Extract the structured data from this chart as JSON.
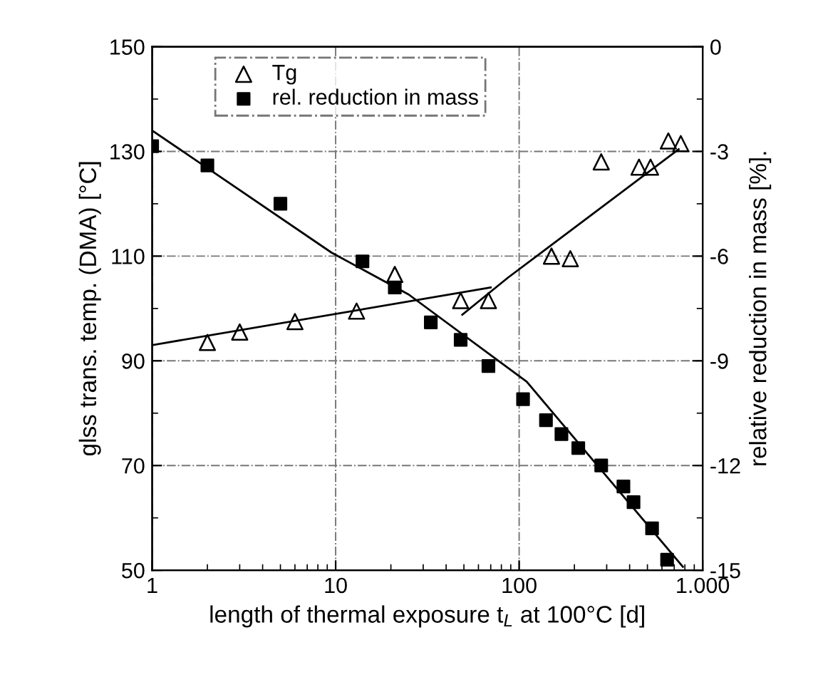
{
  "chart_data": {
    "type": "scatter",
    "xlabel": "length of thermal exposure t$_{L}$ at 100°C [d]",
    "ylabel": "glss trans. temp. (DMA) [°C]",
    "y2label": "relative reduction in mass [%].",
    "log": "x",
    "xlim": [
      1,
      1000
    ],
    "xticks": [
      1,
      10,
      100,
      {
        "value": 1000,
        "label": "1.000"
      }
    ],
    "ylim": [
      50,
      150
    ],
    "yticks": [
      50,
      70,
      90,
      110,
      130,
      150
    ],
    "y2lim": [
      -15,
      0
    ],
    "y2ticks": [
      -15,
      -12,
      -9,
      -6,
      -3,
      0
    ],
    "grid": true,
    "legend": "top",
    "series": [
      {
        "name": "Tg",
        "color": "#000000",
        "marker": "triangle",
        "x": [
          2,
          3,
          6,
          13,
          21,
          48,
          68,
          150,
          190,
          280,
          450,
          520,
          650,
          760
        ],
        "values": [
          93.5,
          95.5,
          97.5,
          99.5,
          106.5,
          101.5,
          101.5,
          110,
          109.5,
          128,
          127,
          127,
          132,
          131.5
        ]
      },
      {
        "name": "rel. reduction in mass",
        "color": "#000000",
        "marker": "square",
        "axis": "y2",
        "x": [
          1,
          2,
          5,
          14,
          21,
          33,
          48,
          68,
          105,
          140,
          170,
          210,
          280,
          370,
          420,
          530,
          640
        ],
        "values": [
          -2.85,
          -3.4,
          -4.5,
          -6.15,
          -6.9,
          -7.9,
          -8.4,
          -9.15,
          -10.1,
          -10.7,
          -11.1,
          -11.5,
          -12,
          -12.6,
          -13.05,
          -13.8,
          -14.7
        ]
      },
      {
        "type": "line",
        "color": "#000000",
        "x": [
          1,
          70
        ],
        "values": [
          93,
          104
        ]
      },
      {
        "type": "line",
        "color": "#000000",
        "x": [
          49,
          87,
          740
        ],
        "values": [
          98.8,
          105.9,
          130.4
        ]
      },
      {
        "type": "line",
        "color": "#000000",
        "axis": "y2",
        "x": [
          1,
          9.5,
          25,
          110,
          780
        ],
        "values": [
          -2.4,
          -5.9,
          -7.1,
          -9.6,
          -14.9
        ]
      }
    ]
  }
}
